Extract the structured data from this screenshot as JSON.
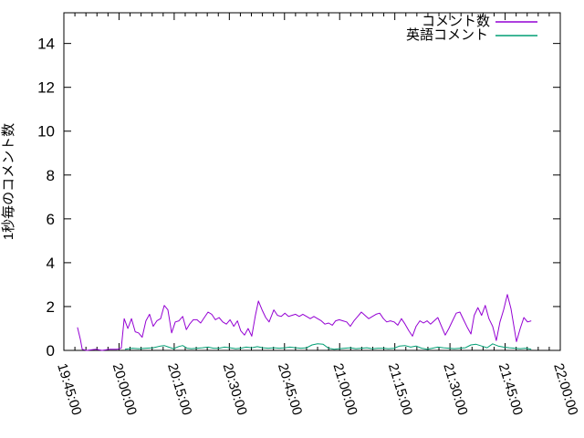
{
  "figure": {
    "background": "#ffffff",
    "axis_color": "#000000"
  },
  "legend": {
    "position": "top-right-inside",
    "items": [
      {
        "label": "コメント数",
        "color": "#9400d3"
      },
      {
        "label": "英語コメント",
        "color": "#009e73"
      }
    ]
  },
  "chart_data": {
    "type": "line",
    "title": "",
    "xlabel": "",
    "ylabel": "1秒毎のコメント数",
    "grid": false,
    "x_tick_labels": [
      "19:45:00",
      "20:00:00",
      "20:15:00",
      "20:30:00",
      "20:45:00",
      "21:00:00",
      "21:15:00",
      "21:30:00",
      "21:45:00",
      "22:00:00"
    ],
    "x_range_minutes": [
      0,
      135
    ],
    "x_major_interval_minutes": 15,
    "x_minor_interval_minutes": 3,
    "y_ticks": [
      0,
      2,
      4,
      6,
      8,
      10,
      12,
      14
    ],
    "ylim": [
      0,
      15.4
    ],
    "series": [
      {
        "name": "コメント数",
        "color": "#9400d3",
        "points": [
          [
            3.7,
            1.05
          ],
          [
            4.5,
            0.5
          ],
          [
            5,
            0.05
          ],
          [
            6.2,
            0
          ],
          [
            8.7,
            0.05
          ],
          [
            10.4,
            0
          ],
          [
            12.4,
            0.05
          ],
          [
            14.4,
            0.05
          ],
          [
            15.6,
            0.1
          ],
          [
            16.4,
            1.45
          ],
          [
            17.4,
            1.0
          ],
          [
            18.4,
            1.45
          ],
          [
            19.4,
            0.85
          ],
          [
            20.3,
            0.8
          ],
          [
            21.3,
            0.6
          ],
          [
            22.3,
            1.35
          ],
          [
            23.3,
            1.65
          ],
          [
            24.3,
            1.1
          ],
          [
            25.3,
            1.35
          ],
          [
            26.3,
            1.45
          ],
          [
            27.3,
            2.05
          ],
          [
            28.3,
            1.85
          ],
          [
            29.3,
            0.8
          ],
          [
            30.3,
            1.3
          ],
          [
            31.3,
            1.35
          ],
          [
            32.3,
            1.55
          ],
          [
            33.3,
            0.95
          ],
          [
            34.2,
            1.2
          ],
          [
            35.2,
            1.4
          ],
          [
            36.2,
            1.4
          ],
          [
            37.2,
            1.25
          ],
          [
            38.2,
            1.5
          ],
          [
            39.2,
            1.75
          ],
          [
            40.2,
            1.65
          ],
          [
            41.2,
            1.4
          ],
          [
            42.2,
            1.5
          ],
          [
            43.2,
            1.3
          ],
          [
            44.2,
            1.2
          ],
          [
            45.2,
            1.4
          ],
          [
            46.2,
            1.1
          ],
          [
            47.2,
            1.35
          ],
          [
            48.1,
            0.9
          ],
          [
            49.1,
            0.7
          ],
          [
            50.1,
            1.0
          ],
          [
            51.1,
            0.65
          ],
          [
            52.1,
            1.6
          ],
          [
            52.9,
            2.25
          ],
          [
            53.9,
            1.85
          ],
          [
            54.9,
            1.5
          ],
          [
            55.8,
            1.3
          ],
          [
            57.1,
            1.85
          ],
          [
            58.1,
            1.6
          ],
          [
            59.1,
            1.55
          ],
          [
            60.1,
            1.7
          ],
          [
            61.1,
            1.55
          ],
          [
            62,
            1.6
          ],
          [
            63,
            1.65
          ],
          [
            64,
            1.55
          ],
          [
            65,
            1.65
          ],
          [
            66,
            1.55
          ],
          [
            67,
            1.45
          ],
          [
            68,
            1.55
          ],
          [
            69,
            1.45
          ],
          [
            70,
            1.35
          ],
          [
            71,
            1.2
          ],
          [
            72,
            1.25
          ],
          [
            73,
            1.15
          ],
          [
            73.9,
            1.35
          ],
          [
            74.9,
            1.4
          ],
          [
            75.9,
            1.35
          ],
          [
            76.9,
            1.3
          ],
          [
            77.9,
            1.1
          ],
          [
            78.9,
            1.35
          ],
          [
            79.9,
            1.55
          ],
          [
            80.9,
            1.75
          ],
          [
            81.9,
            1.6
          ],
          [
            82.9,
            1.45
          ],
          [
            83.9,
            1.55
          ],
          [
            84.9,
            1.65
          ],
          [
            85.9,
            1.7
          ],
          [
            86.9,
            1.45
          ],
          [
            87.8,
            1.3
          ],
          [
            88.8,
            1.35
          ],
          [
            89.8,
            1.3
          ],
          [
            90.8,
            1.15
          ],
          [
            91.8,
            1.45
          ],
          [
            92.8,
            1.2
          ],
          [
            93.8,
            0.9
          ],
          [
            94.8,
            0.65
          ],
          [
            95.8,
            1.1
          ],
          [
            96.8,
            1.35
          ],
          [
            97.8,
            1.25
          ],
          [
            98.8,
            1.35
          ],
          [
            99.7,
            1.2
          ],
          [
            100.7,
            1.35
          ],
          [
            101.7,
            1.5
          ],
          [
            102.7,
            1.1
          ],
          [
            103.7,
            0.7
          ],
          [
            104.7,
            1.0
          ],
          [
            105.7,
            1.35
          ],
          [
            106.7,
            1.7
          ],
          [
            107.7,
            1.75
          ],
          [
            108.7,
            1.4
          ],
          [
            109.7,
            1.05
          ],
          [
            110.7,
            0.75
          ],
          [
            111.6,
            1.6
          ],
          [
            112.6,
            1.95
          ],
          [
            113.6,
            1.6
          ],
          [
            114.6,
            2.05
          ],
          [
            115.6,
            1.45
          ],
          [
            116.6,
            1.1
          ],
          [
            117.6,
            0.45
          ],
          [
            118.6,
            1.3
          ],
          [
            119.6,
            1.85
          ],
          [
            120.6,
            2.55
          ],
          [
            121.6,
            1.9
          ],
          [
            122.6,
            0.9
          ],
          [
            123.1,
            0.4
          ],
          [
            124.1,
            1.0
          ],
          [
            125.1,
            1.5
          ],
          [
            126.1,
            1.3
          ],
          [
            127.1,
            1.35
          ]
        ]
      },
      {
        "name": "英語コメント",
        "color": "#009e73",
        "points": [
          [
            16.6,
            0.05
          ],
          [
            18.6,
            0.1
          ],
          [
            20.3,
            0.08
          ],
          [
            22.3,
            0.1
          ],
          [
            24.3,
            0.12
          ],
          [
            26.3,
            0.2
          ],
          [
            27.3,
            0.22
          ],
          [
            28.5,
            0.15
          ],
          [
            29.8,
            0.08
          ],
          [
            31.3,
            0.18
          ],
          [
            32.3,
            0.22
          ],
          [
            33.5,
            0.1
          ],
          [
            34.7,
            0.08
          ],
          [
            36.2,
            0.1
          ],
          [
            37.7,
            0.12
          ],
          [
            39.2,
            0.15
          ],
          [
            40.7,
            0.1
          ],
          [
            42.2,
            0.1
          ],
          [
            43.7,
            0.15
          ],
          [
            45.2,
            0.12
          ],
          [
            46.7,
            0.08
          ],
          [
            48.1,
            0.1
          ],
          [
            49.6,
            0.15
          ],
          [
            51.1,
            0.12
          ],
          [
            52.6,
            0.17
          ],
          [
            54.1,
            0.12
          ],
          [
            55.6,
            0.1
          ],
          [
            57.1,
            0.12
          ],
          [
            58.6,
            0.1
          ],
          [
            60.1,
            0.12
          ],
          [
            61.5,
            0.15
          ],
          [
            63,
            0.12
          ],
          [
            64.5,
            0.1
          ],
          [
            66,
            0.12
          ],
          [
            67.5,
            0.25
          ],
          [
            69,
            0.3
          ],
          [
            70.5,
            0.28
          ],
          [
            72,
            0.1
          ],
          [
            73.5,
            0.05
          ],
          [
            74.9,
            0.08
          ],
          [
            76.4,
            0.1
          ],
          [
            77.9,
            0.12
          ],
          [
            79.4,
            0.08
          ],
          [
            80.9,
            0.1
          ],
          [
            82.4,
            0.12
          ],
          [
            83.9,
            0.08
          ],
          [
            85.4,
            0.1
          ],
          [
            86.9,
            0.1
          ],
          [
            88.3,
            0.08
          ],
          [
            89.8,
            0.1
          ],
          [
            91.3,
            0.2
          ],
          [
            92.8,
            0.22
          ],
          [
            94.3,
            0.15
          ],
          [
            95.8,
            0.2
          ],
          [
            97.3,
            0.1
          ],
          [
            98.8,
            0.05
          ],
          [
            100.2,
            0.1
          ],
          [
            101.7,
            0.15
          ],
          [
            103.2,
            0.12
          ],
          [
            104.7,
            0.1
          ],
          [
            106.2,
            0.08
          ],
          [
            107.7,
            0.1
          ],
          [
            109.2,
            0.12
          ],
          [
            110.7,
            0.25
          ],
          [
            112.1,
            0.28
          ],
          [
            113.6,
            0.2
          ],
          [
            115.1,
            0.12
          ],
          [
            116.6,
            0.3
          ],
          [
            118.1,
            0.2
          ],
          [
            119.6,
            0.15
          ],
          [
            121.1,
            0.12
          ],
          [
            122.6,
            0.1
          ],
          [
            124.1,
            0.08
          ],
          [
            125.6,
            0.1
          ],
          [
            127.1,
            0.05
          ]
        ]
      }
    ]
  }
}
